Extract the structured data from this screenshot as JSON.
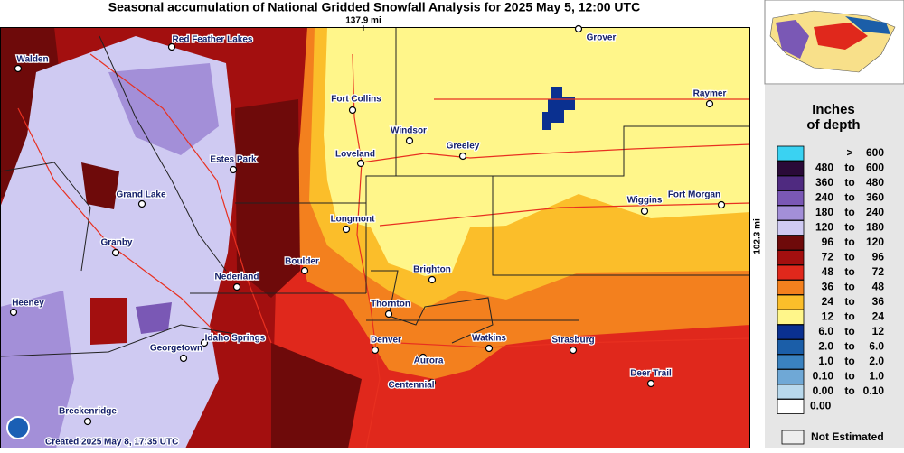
{
  "title": "Seasonal accumulation of National Gridded Snowfall Analysis for 2025 May 5, 12:00 UTC",
  "scale_top": "137.9 mi",
  "scale_right": "102.3 mi",
  "cities": [
    "Grover",
    "Red Feather Lakes",
    "Walden",
    "Raymer",
    "Fort Collins",
    "Windsor",
    "Greeley",
    "Estes Park",
    "Loveland",
    "Grand Lake",
    "Wiggins",
    "Fort Morgan",
    "Longmont",
    "Granby",
    "Boulder",
    "Brighton",
    "Nederland",
    "Heeney",
    "Thornton",
    "Idaho Springs",
    "Denver",
    "Watkins",
    "Strasburg",
    "Georgetown",
    "Aurora",
    "Deer Trail",
    "Centennial",
    "Breckenridge"
  ],
  "created": "Created 2025 May 8, 17:35 UTC",
  "legend": {
    "title_lines": [
      "Inches",
      "of depth"
    ],
    "rows": [
      {
        "color": "#3ad2f2",
        "cells": [
          ">",
          "600"
        ]
      },
      {
        "color": "#2a0a38",
        "cells": [
          "480",
          "to",
          "600"
        ]
      },
      {
        "color": "#4f2a80",
        "cells": [
          "360",
          "to",
          "480"
        ]
      },
      {
        "color": "#7a58b5",
        "cells": [
          "240",
          "to",
          "360"
        ]
      },
      {
        "color": "#a38fd8",
        "cells": [
          "180",
          "to",
          "240"
        ]
      },
      {
        "color": "#cfcaf2",
        "cells": [
          "120",
          "to",
          "180"
        ]
      },
      {
        "color": "#6e0a0a",
        "cells": [
          "96",
          "to",
          "120"
        ]
      },
      {
        "color": "#a30f0f",
        "cells": [
          "72",
          "to",
          "96"
        ]
      },
      {
        "color": "#e0281c",
        "cells": [
          "48",
          "to",
          "72"
        ]
      },
      {
        "color": "#f3801e",
        "cells": [
          "36",
          "to",
          "48"
        ]
      },
      {
        "color": "#fbbe2a",
        "cells": [
          "24",
          "to",
          "36"
        ]
      },
      {
        "color": "#fff68a",
        "cells": [
          "12",
          "to",
          "24"
        ]
      },
      {
        "color": "#0a3090",
        "cells": [
          "6.0",
          "to",
          "12"
        ]
      },
      {
        "color": "#1b5ea8",
        "cells": [
          "2.0",
          "to",
          "6.0"
        ]
      },
      {
        "color": "#3a82c0",
        "cells": [
          "1.0",
          "to",
          "2.0"
        ]
      },
      {
        "color": "#6fa8d6",
        "cells": [
          "0.10",
          "to",
          "1.0"
        ]
      },
      {
        "color": "#b8d8ec",
        "cells": [
          "0.00",
          "to",
          "0.10"
        ]
      },
      {
        "color": "#ffffff",
        "cells": [
          "0.00"
        ]
      }
    ],
    "not_estimated": "Not Estimated"
  }
}
